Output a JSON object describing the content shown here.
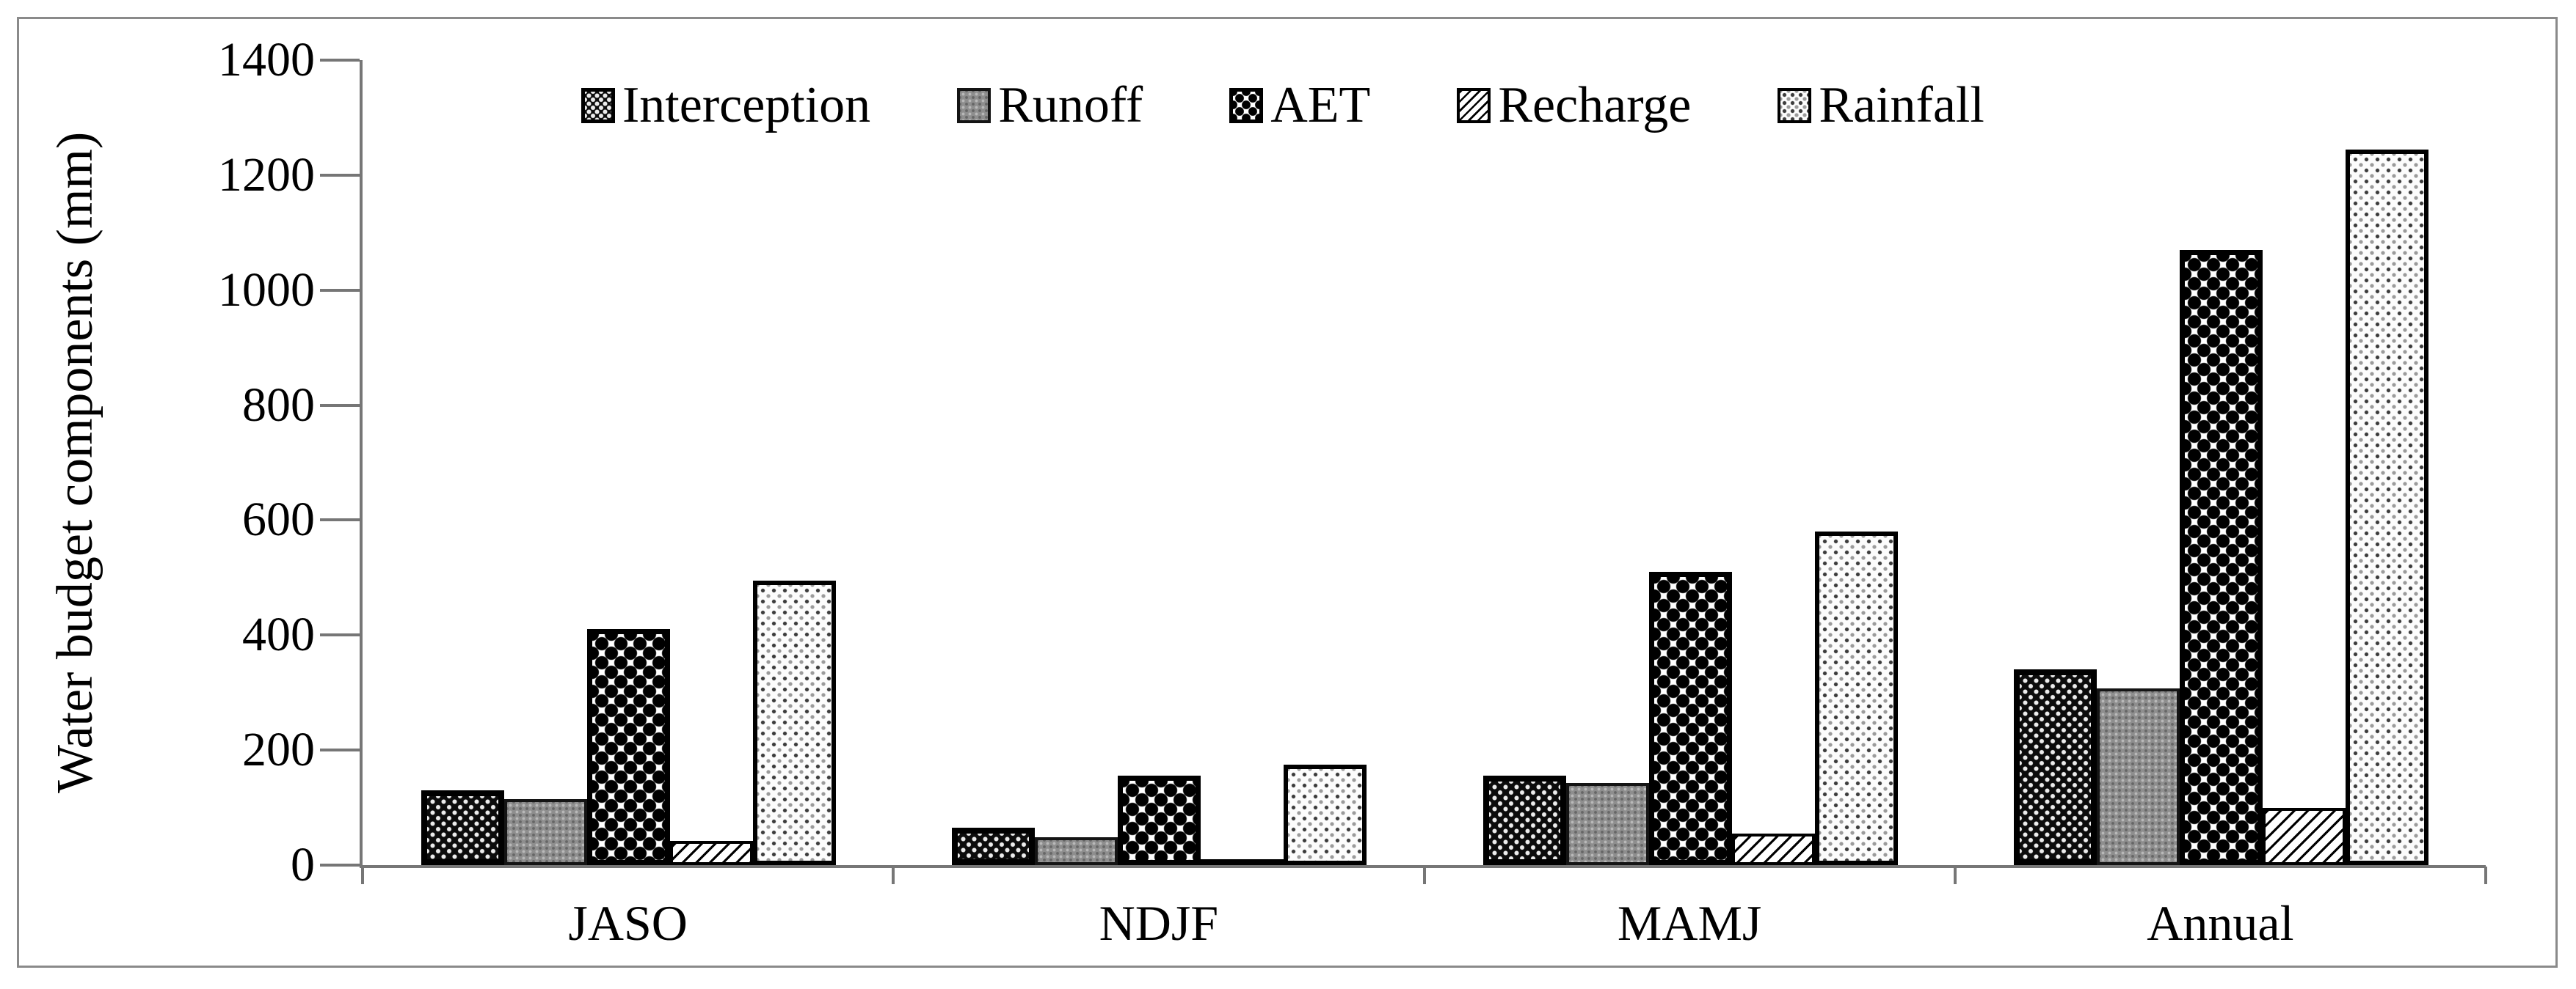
{
  "figure": {
    "y_axis": {
      "title": "Water budget components (mm)",
      "min": 0,
      "max": 1400,
      "tick_step": 200,
      "tick_labels": [
        "0",
        "200",
        "400",
        "600",
        "800",
        "1000",
        "1200",
        "1400"
      ]
    },
    "x_axis": {
      "categories": [
        "JASO",
        "NDJF",
        "MAMJ",
        "Annual"
      ]
    },
    "legend_labels": [
      "Interception",
      "Runoff",
      "AET",
      "Recharge",
      "Rainfall"
    ]
  },
  "chart_data": {
    "type": "bar",
    "title": "",
    "xlabel": "",
    "ylabel": "Water budget components (mm)",
    "ylim": [
      0,
      1400
    ],
    "ytick_step": 200,
    "grid": false,
    "legend_position": "top",
    "categories": [
      "JASO",
      "NDJF",
      "MAMJ",
      "Annual"
    ],
    "series": [
      {
        "name": "Interception",
        "pattern": "black-white-dots",
        "values": [
          130,
          65,
          155,
          340
        ]
      },
      {
        "name": "Runoff",
        "pattern": "solid-gray",
        "values": [
          115,
          48,
          143,
          307
        ]
      },
      {
        "name": "AET",
        "pattern": "black-ball-checker",
        "values": [
          410,
          155,
          510,
          1070
        ]
      },
      {
        "name": "Recharge",
        "pattern": "diagonal-hatch",
        "values": [
          42,
          10,
          55,
          100
        ]
      },
      {
        "name": "Rainfall",
        "pattern": "light-dot-grid",
        "values": [
          495,
          175,
          580,
          1245
        ]
      }
    ],
    "colors": {
      "axis": "#767676",
      "frame_border": "#8a8a8a",
      "bar_outline": "#000000",
      "runoff_gray": "#8e8e8e"
    }
  }
}
